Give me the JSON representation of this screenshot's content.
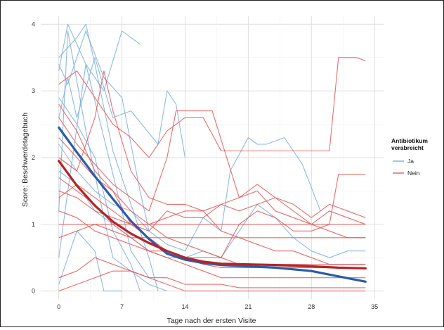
{
  "chart_data": {
    "type": "line",
    "title": "",
    "xlabel": "Tage nach der ersten Visite",
    "ylabel": "Score: Beschwerdetagebuch",
    "xlim": [
      -2,
      36
    ],
    "ylim": [
      -0.12,
      4.12
    ],
    "x_ticks": [
      0,
      7,
      14,
      21,
      28,
      35
    ],
    "y_ticks": [
      0,
      1,
      2,
      3,
      4
    ],
    "grid": true,
    "legend": {
      "title": "Antibiotikum verabreicht",
      "placement": "right",
      "entries": [
        {
          "label": "Ja",
          "color": "#6fa8d6"
        },
        {
          "label": "Nein",
          "color": "#e05050"
        }
      ]
    },
    "colors": {
      "ja_individual": "#7aaed8",
      "nein_individual": "#e05555",
      "ja_trend": "#2a5ba8",
      "nein_trend": "#b32428"
    },
    "series": [
      {
        "name": "Ja",
        "role": "trend",
        "x": [
          0,
          2,
          4,
          6,
          8,
          10,
          12,
          14,
          16,
          18,
          21,
          24,
          28,
          31,
          34
        ],
        "values": [
          2.45,
          2.08,
          1.72,
          1.38,
          1.05,
          0.78,
          0.56,
          0.47,
          0.42,
          0.39,
          0.37,
          0.35,
          0.3,
          0.22,
          0.14
        ]
      },
      {
        "name": "Nein",
        "role": "trend",
        "x": [
          0,
          2,
          4,
          6,
          8,
          10,
          12,
          14,
          16,
          18,
          21,
          24,
          28,
          31,
          34
        ],
        "values": [
          1.95,
          1.58,
          1.28,
          1.04,
          0.86,
          0.72,
          0.6,
          0.5,
          0.44,
          0.41,
          0.4,
          0.39,
          0.37,
          0.35,
          0.34
        ]
      },
      {
        "name": "Ja",
        "role": "individual",
        "x": [
          0,
          1,
          2,
          3,
          5,
          7,
          9
        ],
        "values": [
          3.3,
          4.0,
          3.7,
          3.4,
          3.0,
          3.9,
          3.7
        ]
      },
      {
        "name": "Ja",
        "role": "individual",
        "x": [
          0,
          1,
          3,
          5,
          7,
          9,
          10
        ],
        "values": [
          3.4,
          3.1,
          3.9,
          3.2,
          2.9,
          1.5,
          0.9
        ]
      },
      {
        "name": "Ja",
        "role": "individual",
        "x": [
          0,
          2,
          3,
          4,
          6,
          8,
          10,
          11
        ],
        "values": [
          3.5,
          3.8,
          4.0,
          3.4,
          2.1,
          1.3,
          0.5,
          0.0
        ]
      },
      {
        "name": "Ja",
        "role": "individual",
        "x": [
          0,
          1,
          2,
          4,
          6,
          8,
          11,
          12,
          13,
          14
        ],
        "values": [
          2.6,
          3.2,
          2.6,
          3.5,
          2.6,
          2.7,
          2.2,
          3.0,
          2.8,
          2.0
        ]
      },
      {
        "name": "Ja",
        "role": "individual",
        "x": [
          0,
          2,
          4,
          6,
          8,
          10,
          12,
          14,
          16,
          18,
          19,
          21,
          22,
          23,
          25,
          27,
          29
        ],
        "values": [
          2.2,
          1.8,
          1.5,
          1.3,
          1.2,
          0.9,
          0.7,
          0.6,
          1.1,
          0.9,
          1.8,
          2.3,
          2.2,
          2.2,
          2.3,
          1.9,
          1.2
        ]
      },
      {
        "name": "Ja",
        "role": "individual",
        "x": [
          0,
          2,
          4,
          6,
          8,
          10,
          12,
          14,
          16,
          18,
          20,
          22,
          24,
          26,
          28,
          30,
          32,
          34
        ],
        "values": [
          1.8,
          1.6,
          1.2,
          1.0,
          0.8,
          0.6,
          0.5,
          0.5,
          0.6,
          0.5,
          0.9,
          1.3,
          1.1,
          0.8,
          0.6,
          0.5,
          0.6,
          0.6
        ]
      },
      {
        "name": "Ja",
        "role": "individual",
        "x": [
          0,
          1,
          3,
          5,
          7,
          8,
          10
        ],
        "values": [
          0.5,
          1.5,
          3.4,
          2.3,
          1.2,
          0.6,
          0.2
        ]
      },
      {
        "name": "Ja",
        "role": "individual",
        "x": [
          0,
          2,
          4,
          6,
          8,
          9
        ],
        "values": [
          2.9,
          2.5,
          2.0,
          0.9,
          0.4,
          0.0
        ]
      },
      {
        "name": "Ja",
        "role": "individual",
        "x": [
          0,
          1,
          3,
          5,
          6,
          8,
          10,
          12
        ],
        "values": [
          1.2,
          3.9,
          2.4,
          1.1,
          0.5,
          0.3,
          0.1,
          0.0
        ]
      },
      {
        "name": "Ja",
        "role": "individual",
        "x": [
          0,
          2,
          4,
          5,
          7
        ],
        "values": [
          0.1,
          0.9,
          0.6,
          0.0,
          0.0
        ]
      },
      {
        "name": "Nein",
        "role": "individual",
        "x": [
          0,
          2,
          4,
          6,
          8,
          10,
          12,
          14,
          16,
          18,
          20,
          22,
          24,
          26,
          28,
          30,
          31,
          33,
          34
        ],
        "values": [
          3.1,
          3.3,
          2.9,
          2.5,
          2.3,
          2.0,
          2.4,
          2.6,
          2.6,
          2.1,
          2.1,
          2.1,
          2.1,
          2.1,
          2.1,
          2.1,
          3.5,
          3.5,
          3.45
        ]
      },
      {
        "name": "Nein",
        "role": "individual",
        "x": [
          0,
          2,
          4,
          6,
          8,
          10,
          12,
          13,
          14,
          17,
          20,
          22,
          24,
          26,
          28,
          30,
          32,
          34
        ],
        "values": [
          2.6,
          2.2,
          1.9,
          1.6,
          1.4,
          1.2,
          2.0,
          2.7,
          2.7,
          2.7,
          1.4,
          1.5,
          1.2,
          1.1,
          1.0,
          1.2,
          1.1,
          1.0
        ]
      },
      {
        "name": "Nein",
        "role": "individual",
        "x": [
          0,
          2,
          4,
          6,
          8,
          10,
          12,
          14,
          16,
          18,
          20,
          22,
          24,
          26,
          28,
          30,
          31,
          34
        ],
        "values": [
          2.3,
          2.0,
          1.7,
          1.5,
          1.2,
          1.0,
          0.8,
          0.7,
          0.6,
          0.5,
          1.0,
          1.2,
          1.1,
          0.9,
          0.9,
          1.0,
          1.75,
          1.75
        ]
      },
      {
        "name": "Nein",
        "role": "individual",
        "x": [
          0,
          2,
          4,
          6,
          8,
          10,
          12,
          14,
          16,
          18,
          20,
          22,
          24,
          26,
          28,
          30,
          32,
          34
        ],
        "values": [
          1.5,
          1.4,
          1.2,
          1.1,
          1.0,
          1.0,
          1.1,
          1.2,
          1.2,
          1.3,
          1.2,
          1.3,
          1.4,
          1.2,
          1.0,
          0.9,
          0.8,
          0.8
        ]
      },
      {
        "name": "Nein",
        "role": "individual",
        "x": [
          0,
          2,
          4,
          6,
          8,
          10,
          12,
          14,
          16,
          18,
          20,
          22,
          24,
          26,
          28,
          30,
          32,
          34
        ],
        "values": [
          1.2,
          1.1,
          0.9,
          0.8,
          0.7,
          0.6,
          0.6,
          0.5,
          0.5,
          0.5,
          0.4,
          0.4,
          0.4,
          0.4,
          0.4,
          0.4,
          0.4,
          0.4
        ]
      },
      {
        "name": "Nein",
        "role": "individual",
        "x": [
          0,
          2,
          4,
          6,
          8,
          10,
          12,
          14,
          16,
          18,
          20,
          22,
          24,
          26,
          28,
          30,
          32,
          34
        ],
        "values": [
          1.0,
          1.0,
          1.0,
          1.0,
          1.0,
          1.0,
          1.0,
          1.0,
          1.0,
          1.0,
          1.0,
          1.0,
          1.0,
          1.0,
          1.0,
          1.0,
          1.0,
          1.0
        ]
      },
      {
        "name": "Nein",
        "role": "individual",
        "x": [
          0,
          2,
          4,
          5,
          6,
          8,
          10,
          12,
          14,
          16,
          18,
          20,
          22,
          24,
          26,
          28,
          30,
          32,
          34
        ],
        "values": [
          2.0,
          1.8,
          2.6,
          3.3,
          2.7,
          1.8,
          1.4,
          1.3,
          1.3,
          1.2,
          0.9,
          0.8,
          0.7,
          0.6,
          0.6,
          0.5,
          0.4,
          0.4,
          0.4
        ]
      },
      {
        "name": "Nein",
        "role": "individual",
        "x": [
          0,
          2,
          4,
          6,
          8,
          10,
          12,
          14,
          16,
          18,
          20,
          22,
          24,
          26,
          28,
          30,
          32,
          34
        ],
        "values": [
          1.7,
          1.5,
          1.3,
          1.0,
          0.8,
          0.6,
          0.5,
          0.4,
          0.3,
          0.2,
          0.2,
          0.2,
          0.2,
          0.2,
          0.2,
          0.2,
          0.2,
          0.2
        ]
      },
      {
        "name": "Nein",
        "role": "individual",
        "x": [
          0,
          2,
          4,
          6,
          8,
          10,
          12,
          14,
          16,
          18,
          20,
          22,
          24,
          26,
          28,
          30,
          32,
          34
        ],
        "values": [
          0.8,
          0.9,
          1.0,
          0.9,
          0.8,
          0.8,
          0.8,
          0.8,
          0.8,
          0.8,
          0.8,
          0.8,
          0.8,
          0.8,
          0.8,
          0.8,
          0.8,
          0.8
        ]
      },
      {
        "name": "Nein",
        "role": "individual",
        "x": [
          0,
          2,
          4,
          6,
          8,
          10,
          12,
          14,
          16,
          18,
          20,
          22,
          24,
          26,
          28,
          30,
          32,
          34
        ],
        "values": [
          0.2,
          0.3,
          0.5,
          0.4,
          0.3,
          0.2,
          0.2,
          0.1,
          0.1,
          0.1,
          0.05,
          0.05,
          0.05,
          0.05,
          0.05,
          0.05,
          0.05,
          0.05
        ]
      },
      {
        "name": "Nein",
        "role": "individual",
        "x": [
          0,
          2,
          4,
          6,
          8,
          10,
          12,
          14,
          16,
          18,
          20,
          22,
          24,
          26,
          28,
          30,
          32,
          34
        ],
        "values": [
          0.0,
          0.1,
          0.2,
          0.3,
          0.3,
          0.2,
          0.1,
          0.0,
          0.0,
          0.0,
          0.0,
          0.0,
          0.0,
          0.0,
          0.0,
          0.0,
          0.0,
          0.0
        ]
      },
      {
        "name": "Nein",
        "role": "individual",
        "x": [
          0,
          2,
          4,
          6,
          8,
          10,
          12,
          14,
          16,
          18,
          20,
          22,
          24,
          26,
          28,
          30,
          32,
          34
        ],
        "values": [
          2.8,
          2.4,
          1.8,
          1.5,
          1.0,
          0.8,
          0.6,
          0.5,
          0.4,
          0.35,
          0.35,
          0.35,
          0.35,
          0.35,
          0.35,
          0.35,
          0.35,
          0.35
        ]
      },
      {
        "name": "Nein",
        "role": "individual",
        "x": [
          0,
          2,
          4,
          6,
          8,
          10,
          12,
          14,
          16,
          18,
          20,
          22,
          24,
          26,
          28,
          30,
          32,
          34
        ],
        "values": [
          1.4,
          1.6,
          1.4,
          1.2,
          1.0,
          0.9,
          1.2,
          1.1,
          1.1,
          1.3,
          1.4,
          1.6,
          1.4,
          1.3,
          1.1,
          1.3,
          1.2,
          1.1
        ]
      }
    ]
  }
}
